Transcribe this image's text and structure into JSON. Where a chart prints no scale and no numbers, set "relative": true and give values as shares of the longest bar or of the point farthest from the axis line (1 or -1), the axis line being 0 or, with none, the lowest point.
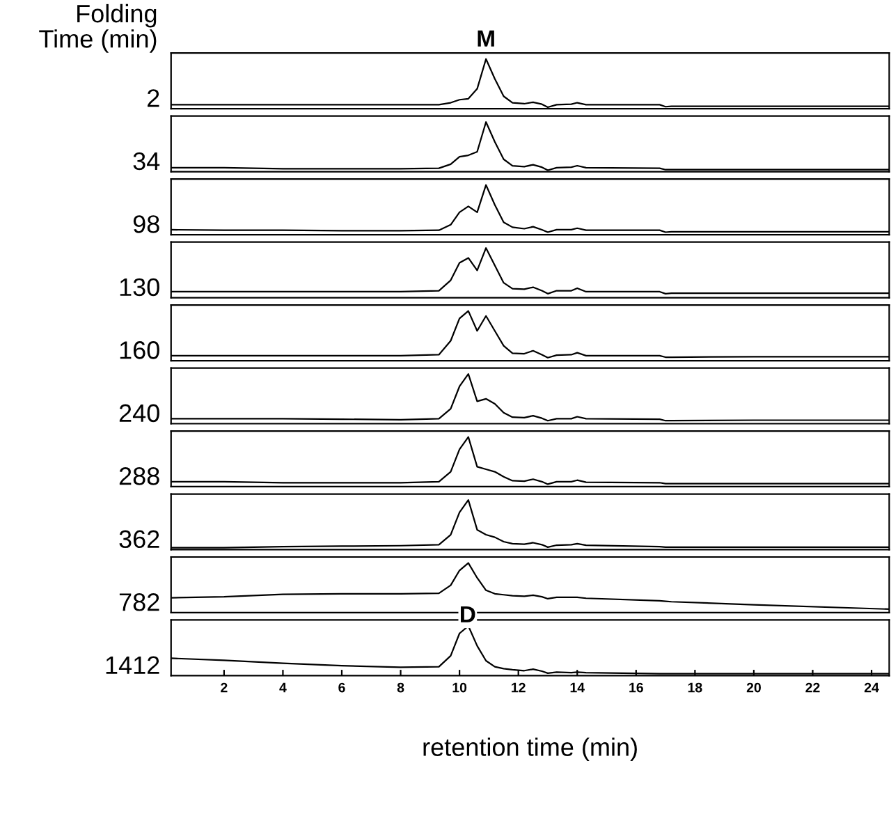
{
  "chart_data": [
    {
      "type": "line",
      "relative": true,
      "ylabel": "2",
      "tick_labels": false,
      "xlim": [
        0.2,
        24.6
      ],
      "annotations": [
        "Folding\nTime (min)",
        {
          "text": "M",
          "x": 10.9,
          "y": 1.0
        }
      ],
      "x": [
        0.2,
        2,
        4,
        6,
        8,
        9.3,
        9.7,
        10.0,
        10.3,
        10.6,
        10.9,
        11.2,
        11.5,
        11.8,
        12.2,
        12.5,
        12.8,
        13.0,
        13.3,
        13.8,
        14.0,
        14.3,
        16.8,
        17.0,
        17.2,
        20,
        24.6
      ],
      "series": [
        {
          "color": "#000000",
          "values": [
            0.08,
            0.08,
            0.08,
            0.08,
            0.08,
            0.08,
            0.12,
            0.18,
            0.2,
            0.4,
            1.0,
            0.6,
            0.25,
            0.12,
            0.1,
            0.13,
            0.09,
            0.03,
            0.08,
            0.09,
            0.12,
            0.08,
            0.08,
            0.04,
            0.05,
            0.05,
            0.05
          ]
        }
      ]
    },
    {
      "type": "line",
      "relative": true,
      "ylabel": "34",
      "tick_labels": false,
      "xlim": [
        0.2,
        24.6
      ],
      "x": [
        0.2,
        2,
        4,
        6,
        8,
        9.3,
        9.7,
        10.0,
        10.3,
        10.6,
        10.9,
        11.2,
        11.5,
        11.8,
        12.2,
        12.5,
        12.8,
        13.0,
        13.3,
        13.8,
        14.0,
        14.3,
        16.8,
        17.0,
        17.2,
        20,
        24.6
      ],
      "series": [
        {
          "color": "#000000",
          "values": [
            0.08,
            0.08,
            0.06,
            0.06,
            0.06,
            0.07,
            0.15,
            0.3,
            0.33,
            0.4,
            1.0,
            0.6,
            0.25,
            0.12,
            0.1,
            0.14,
            0.09,
            0.03,
            0.08,
            0.09,
            0.12,
            0.08,
            0.07,
            0.04,
            0.04,
            0.04,
            0.04
          ]
        }
      ]
    },
    {
      "type": "line",
      "relative": true,
      "ylabel": "98",
      "tick_labels": false,
      "xlim": [
        0.2,
        24.6
      ],
      "x": [
        0.2,
        2,
        4,
        6,
        8,
        9.3,
        9.7,
        10.0,
        10.3,
        10.6,
        10.9,
        11.2,
        11.5,
        11.8,
        12.2,
        12.5,
        12.8,
        13.0,
        13.3,
        13.8,
        14.0,
        14.3,
        16.8,
        17.0,
        17.2,
        20,
        24.6
      ],
      "series": [
        {
          "color": "#000000",
          "values": [
            0.1,
            0.09,
            0.09,
            0.08,
            0.08,
            0.09,
            0.2,
            0.45,
            0.57,
            0.45,
            1.0,
            0.6,
            0.25,
            0.15,
            0.12,
            0.16,
            0.1,
            0.05,
            0.1,
            0.1,
            0.13,
            0.09,
            0.09,
            0.05,
            0.06,
            0.06,
            0.06
          ]
        }
      ]
    },
    {
      "type": "line",
      "relative": true,
      "ylabel": "130",
      "tick_labels": false,
      "xlim": [
        0.2,
        24.6
      ],
      "x": [
        0.2,
        2,
        4,
        6,
        8,
        9.3,
        9.7,
        10.0,
        10.3,
        10.6,
        10.9,
        11.2,
        11.5,
        11.8,
        12.2,
        12.5,
        12.8,
        13.0,
        13.3,
        13.8,
        14.0,
        14.3,
        16.8,
        17.0,
        17.2,
        20,
        24.6
      ],
      "series": [
        {
          "color": "#000000",
          "values": [
            0.12,
            0.12,
            0.12,
            0.12,
            0.12,
            0.14,
            0.35,
            0.7,
            0.8,
            0.55,
            1.0,
            0.65,
            0.3,
            0.18,
            0.17,
            0.21,
            0.14,
            0.08,
            0.14,
            0.14,
            0.19,
            0.12,
            0.12,
            0.08,
            0.09,
            0.09,
            0.09
          ]
        }
      ]
    },
    {
      "type": "line",
      "relative": true,
      "ylabel": "160",
      "tick_labels": false,
      "xlim": [
        0.2,
        24.6
      ],
      "x": [
        0.2,
        2,
        4,
        6,
        8,
        9.3,
        9.7,
        10.0,
        10.3,
        10.6,
        10.9,
        11.2,
        11.5,
        11.8,
        12.2,
        12.5,
        12.8,
        13.0,
        13.3,
        13.8,
        14.0,
        14.3,
        16.8,
        17.0,
        17.2,
        20,
        24.6
      ],
      "series": [
        {
          "color": "#000000",
          "values": [
            0.1,
            0.1,
            0.1,
            0.1,
            0.1,
            0.12,
            0.4,
            0.85,
            1.0,
            0.6,
            0.9,
            0.6,
            0.3,
            0.15,
            0.14,
            0.2,
            0.12,
            0.06,
            0.11,
            0.12,
            0.16,
            0.1,
            0.1,
            0.07,
            0.07,
            0.08,
            0.08
          ]
        }
      ]
    },
    {
      "type": "line",
      "relative": true,
      "ylabel": "240",
      "tick_labels": false,
      "xlim": [
        0.2,
        24.6
      ],
      "x": [
        0.2,
        2,
        4,
        6,
        8,
        9.3,
        9.7,
        10.0,
        10.3,
        10.6,
        10.9,
        11.2,
        11.5,
        11.8,
        12.2,
        12.5,
        12.8,
        13.0,
        13.3,
        13.8,
        14.0,
        14.3,
        16.8,
        17.0,
        17.2,
        20,
        24.6
      ],
      "series": [
        {
          "color": "#000000",
          "values": [
            0.1,
            0.1,
            0.1,
            0.09,
            0.08,
            0.1,
            0.3,
            0.75,
            1.0,
            0.45,
            0.5,
            0.4,
            0.22,
            0.13,
            0.12,
            0.16,
            0.11,
            0.06,
            0.1,
            0.1,
            0.14,
            0.1,
            0.09,
            0.06,
            0.06,
            0.07,
            0.07
          ]
        }
      ]
    },
    {
      "type": "line",
      "relative": true,
      "ylabel": "288",
      "tick_labels": false,
      "xlim": [
        0.2,
        24.6
      ],
      "x": [
        0.2,
        2,
        4,
        6,
        8,
        9.3,
        9.7,
        10.0,
        10.3,
        10.6,
        10.9,
        11.2,
        11.5,
        11.8,
        12.2,
        12.5,
        12.8,
        13.0,
        13.3,
        13.8,
        14.0,
        14.3,
        16.8,
        17.0,
        17.2,
        20,
        24.6
      ],
      "series": [
        {
          "color": "#000000",
          "values": [
            0.1,
            0.1,
            0.08,
            0.08,
            0.08,
            0.1,
            0.3,
            0.75,
            1.0,
            0.4,
            0.35,
            0.3,
            0.2,
            0.12,
            0.11,
            0.15,
            0.1,
            0.05,
            0.1,
            0.1,
            0.13,
            0.09,
            0.08,
            0.06,
            0.06,
            0.06,
            0.06
          ]
        }
      ]
    },
    {
      "type": "line",
      "relative": true,
      "ylabel": "362",
      "tick_labels": false,
      "xlim": [
        0.2,
        24.6
      ],
      "x": [
        0.2,
        2,
        4,
        6,
        8,
        9.3,
        9.7,
        10.0,
        10.3,
        10.6,
        10.9,
        11.2,
        11.5,
        11.8,
        12.2,
        12.5,
        12.8,
        13.0,
        13.3,
        13.8,
        14.0,
        14.3,
        16.8,
        17.0,
        17.2,
        20,
        24.6
      ],
      "series": [
        {
          "color": "#000000",
          "values": [
            0.04,
            0.04,
            0.06,
            0.07,
            0.08,
            0.1,
            0.3,
            0.75,
            1.0,
            0.4,
            0.3,
            0.25,
            0.16,
            0.12,
            0.11,
            0.14,
            0.1,
            0.05,
            0.09,
            0.1,
            0.12,
            0.09,
            0.06,
            0.05,
            0.05,
            0.05,
            0.05
          ]
        }
      ]
    },
    {
      "type": "line",
      "relative": true,
      "ylabel": "782",
      "tick_labels": false,
      "xlim": [
        0.2,
        24.6
      ],
      "x": [
        0.2,
        2,
        4,
        6,
        8,
        9.3,
        9.7,
        10.0,
        10.3,
        10.6,
        10.9,
        11.2,
        11.5,
        11.8,
        12.2,
        12.5,
        12.8,
        13.0,
        13.3,
        13.8,
        14.0,
        14.3,
        16.8,
        17.0,
        17.2,
        20,
        24.6
      ],
      "series": [
        {
          "color": "#000000",
          "values": [
            0.3,
            0.32,
            0.37,
            0.38,
            0.38,
            0.39,
            0.55,
            0.85,
            1.0,
            0.7,
            0.45,
            0.38,
            0.36,
            0.34,
            0.33,
            0.35,
            0.32,
            0.28,
            0.31,
            0.31,
            0.31,
            0.29,
            0.24,
            0.23,
            0.22,
            0.16,
            0.07
          ]
        }
      ]
    },
    {
      "type": "line",
      "relative": true,
      "ylabel": "1412",
      "annotations": [
        "D"
      ],
      "xlim": [
        0.2,
        24.6
      ],
      "xticks": [
        2,
        4,
        6,
        8,
        10,
        12,
        14,
        16,
        18,
        20,
        22,
        24
      ],
      "xlabel": "retention time (min)",
      "tick_labels": "x",
      "x": [
        0.2,
        2,
        4,
        6,
        8,
        9.3,
        9.7,
        10.0,
        10.3,
        10.6,
        10.9,
        11.2,
        11.5,
        11.8,
        12.2,
        12.5,
        12.8,
        13.0,
        13.3,
        13.8,
        14.0,
        14.3,
        16.8,
        17.0,
        17.2,
        20,
        24.6
      ],
      "series": [
        {
          "color": "#000000",
          "values": [
            0.35,
            0.31,
            0.25,
            0.2,
            0.17,
            0.18,
            0.4,
            0.85,
            1.0,
            0.6,
            0.3,
            0.18,
            0.14,
            0.12,
            0.1,
            0.13,
            0.09,
            0.05,
            0.07,
            0.06,
            0.07,
            0.06,
            0.04,
            0.04,
            0.04,
            0.04,
            0.04
          ]
        }
      ]
    }
  ]
}
